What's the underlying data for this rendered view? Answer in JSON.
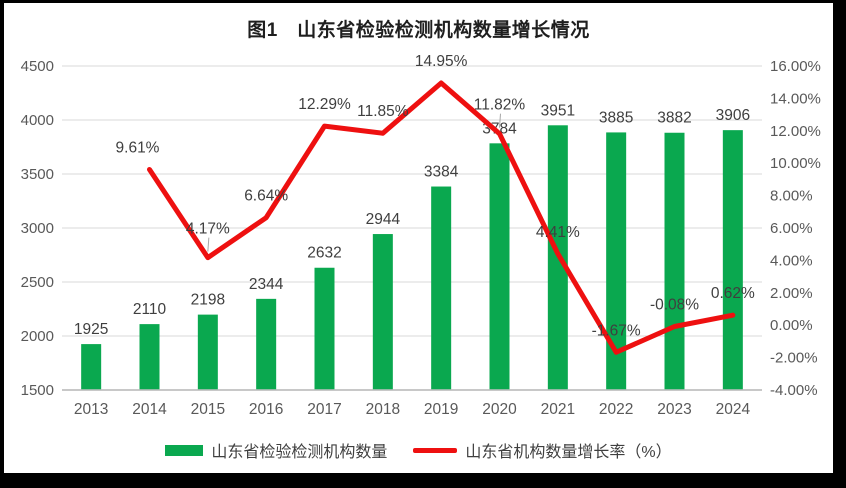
{
  "chart_data": {
    "type": "bar",
    "combo": "bar+line",
    "title": "图1　山东省检验检测机构数量增长情况",
    "categories": [
      "2013",
      "2014",
      "2015",
      "2016",
      "2017",
      "2018",
      "2019",
      "2020",
      "2021",
      "2022",
      "2023",
      "2024"
    ],
    "series": [
      {
        "name": "山东省检验检测机构数量",
        "type": "bar",
        "axis": "left",
        "color": "#0aa84f",
        "values": [
          1925,
          2110,
          2198,
          2344,
          2632,
          2944,
          3384,
          3784,
          3951,
          3885,
          3882,
          3906
        ],
        "labels": [
          "1925",
          "2110",
          "2198",
          "2344",
          "2632",
          "2944",
          "3384",
          "3784",
          "3951",
          "3885",
          "3882",
          "3906"
        ]
      },
      {
        "name": "山东省机构数量增长率（%）",
        "type": "line",
        "axis": "right",
        "color": "#ee1010",
        "values": [
          null,
          9.61,
          4.17,
          6.64,
          12.29,
          11.85,
          14.95,
          11.82,
          4.41,
          -1.67,
          -0.08,
          0.62
        ],
        "labels": [
          "",
          "9.61%",
          "4.17%",
          "6.64%",
          "12.29%",
          "11.85%",
          "14.95%",
          "11.82%",
          "4.41%",
          "-1.67%",
          "-0.08%",
          "0.62%"
        ],
        "leader_indices": [
          2,
          7
        ]
      }
    ],
    "left_axis": {
      "min": 1500,
      "max": 4500,
      "step": 500,
      "ticks": [
        "4500",
        "4000",
        "3500",
        "3000",
        "2500",
        "2000",
        "1500"
      ]
    },
    "right_axis": {
      "min": -4,
      "max": 16,
      "step": 2,
      "ticks": [
        "16.00%",
        "14.00%",
        "12.00%",
        "10.00%",
        "8.00%",
        "6.00%",
        "4.00%",
        "2.00%",
        "0.00%",
        "-2.00%",
        "-4.00%"
      ]
    },
    "grid": true,
    "legend_position": "bottom"
  },
  "colors": {
    "bar": "#0aa84f",
    "line": "#ee1010",
    "grid": "#d9d9d9",
    "axis_line": "#c0c0c0",
    "tick_text": "#595959",
    "data_label_text": "#3f3f3f",
    "leader": "#a6a6a6",
    "page_border": "#000000"
  }
}
